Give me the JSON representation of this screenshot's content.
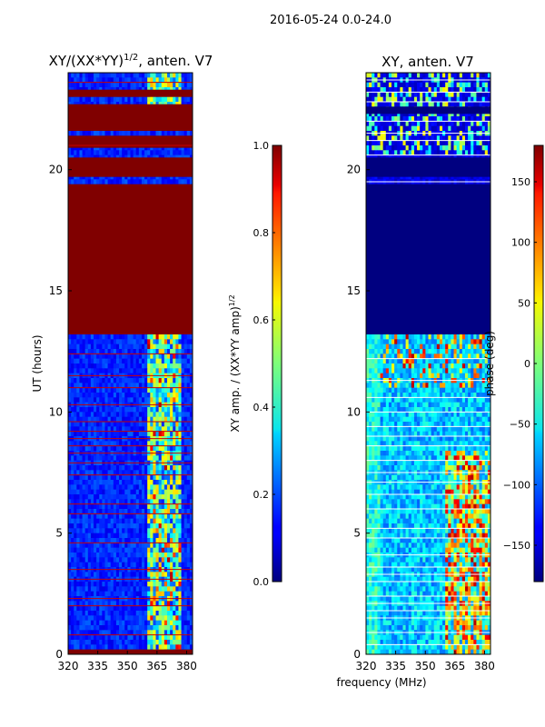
{
  "figure_title": "2016-05-24 0.0-24.0",
  "shared_xlabel": "frequency (MHz)",
  "chart_data": [
    {
      "type": "heatmap",
      "title": "XY/(XX*YY)",
      "title_sup": "1/2",
      "title_suffix": ", anten. V7",
      "ylabel": "UT (hours)",
      "xlim": [
        320,
        383
      ],
      "ylim": [
        0,
        24
      ],
      "xticks": [
        320,
        335,
        350,
        365,
        380
      ],
      "yticks": [
        0,
        5,
        10,
        15,
        20
      ],
      "colorbar": {
        "label": "XY amp. / (XX*YY amp)",
        "label_sup": "1/2",
        "range": [
          0.0,
          1.0
        ],
        "ticks": [
          "0.0",
          "0.2",
          "0.4",
          "0.6",
          "0.8",
          "1.0"
        ],
        "tick_values": [
          0.0,
          0.2,
          0.4,
          0.6,
          0.8,
          1.0
        ]
      },
      "bands": [
        {
          "y0": 0.0,
          "y1": 0.2,
          "value": 1.0
        },
        {
          "y0": 13.2,
          "y1": 19.4,
          "value": 1.0
        },
        {
          "y0": 19.7,
          "y1": 20.5,
          "value": 1.0
        },
        {
          "y0": 20.9,
          "y1": 21.4,
          "value": 1.0
        },
        {
          "y0": 21.6,
          "y1": 22.7,
          "value": 1.0
        },
        {
          "y0": 23.0,
          "y1": 23.3,
          "value": 1.0
        }
      ],
      "lines": [
        0.8,
        2.0,
        2.3,
        3.1,
        3.5,
        4.6,
        5.8,
        6.2,
        7.4,
        7.9,
        8.3,
        8.6,
        8.9,
        9.2,
        9.6,
        10.3,
        11.0,
        11.5,
        12.4,
        21.0,
        23.6
      ]
    },
    {
      "type": "heatmap",
      "title": "XY, anten. V7",
      "ylabel": "",
      "xlim": [
        320,
        383
      ],
      "ylim": [
        0,
        24
      ],
      "xticks": [
        320,
        335,
        350,
        365,
        380
      ],
      "yticks": [
        0,
        5,
        10,
        15,
        20
      ],
      "colorbar": {
        "label": "phase (deg)",
        "range": [
          -180,
          180
        ],
        "ticks": [
          "150",
          "100",
          "50",
          "0",
          "−50",
          "−100",
          "−150"
        ],
        "tick_values": [
          150,
          100,
          50,
          0,
          -50,
          -100,
          -150
        ]
      },
      "bands": [
        {
          "y0": 13.2,
          "y1": 19.4,
          "value": -180
        },
        {
          "y0": 19.7,
          "y1": 20.5,
          "value": -180
        },
        {
          "y0": 22.3,
          "y1": 22.6,
          "value": -180
        }
      ],
      "lines": [
        0.4,
        0.9,
        1.5,
        1.8,
        2.1,
        2.4,
        3.0,
        3.3,
        3.6,
        4.1,
        4.8,
        5.2,
        6.0,
        6.6,
        7.1,
        7.5,
        8.0,
        8.6,
        9.0,
        9.4,
        10.0,
        10.6,
        11.3,
        12.2,
        19.5,
        20.6,
        21.2,
        21.5,
        22.0,
        22.8,
        23.2,
        23.7
      ]
    }
  ]
}
